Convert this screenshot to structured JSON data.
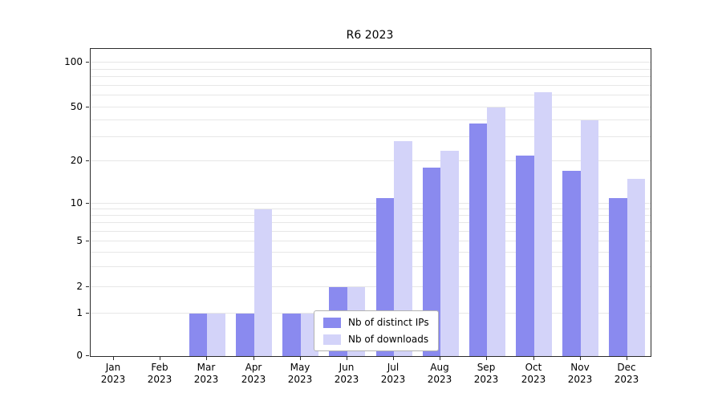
{
  "chart_data": {
    "type": "bar",
    "title": "R6 2023",
    "categories": [
      "Jan 2023",
      "Feb 2023",
      "Mar 2023",
      "Apr 2023",
      "May 2023",
      "Jun 2023",
      "Jul 2023",
      "Aug 2023",
      "Sep 2023",
      "Oct 2023",
      "Nov 2023",
      "Dec 2023"
    ],
    "series": [
      {
        "name": "Nb of distinct IPs",
        "color": "#8a8aef",
        "values": [
          0,
          0,
          1,
          1,
          1,
          2,
          11,
          18,
          38,
          22,
          17,
          11
        ]
      },
      {
        "name": "Nb of downloads",
        "color": "#d3d3f9",
        "values": [
          0,
          0,
          1,
          9,
          1,
          2,
          28,
          24,
          50,
          63,
          40,
          15
        ]
      }
    ],
    "y_ticks": [
      0,
      1,
      2,
      5,
      10,
      20,
      50,
      100
    ],
    "y_scale": "symlog",
    "ylim": [
      0,
      115
    ],
    "grid": "horizontal minor log gridlines",
    "legend_position": "inside lower-center-left"
  }
}
